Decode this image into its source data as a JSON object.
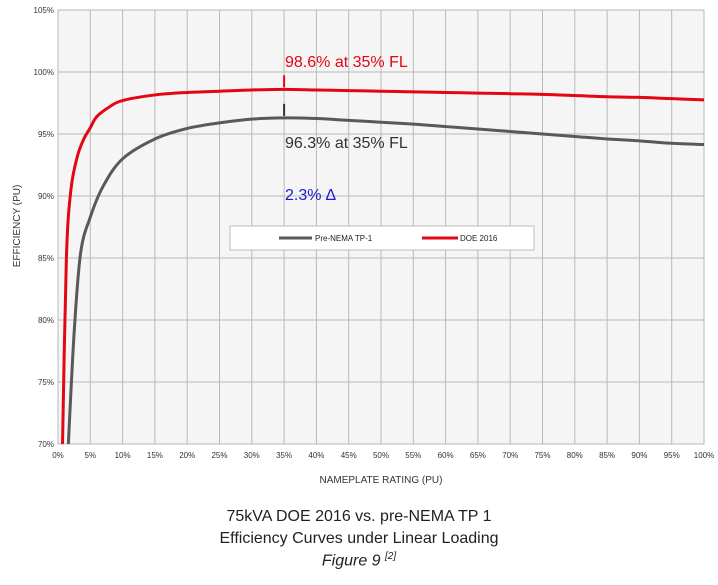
{
  "chart_data": {
    "type": "line",
    "xlabel": "NAMEPLATE RATING (PU)",
    "ylabel": "EFFICIENCY (PU)",
    "xlim": [
      0,
      100
    ],
    "ylim": [
      70,
      105
    ],
    "x_ticks": [
      "0%",
      "5%",
      "10%",
      "15%",
      "20%",
      "25%",
      "30%",
      "35%",
      "40%",
      "45%",
      "50%",
      "55%",
      "60%",
      "65%",
      "70%",
      "75%",
      "80%",
      "85%",
      "90%",
      "95%",
      "100%"
    ],
    "y_ticks": [
      "70%",
      "75%",
      "80%",
      "85%",
      "90%",
      "95%",
      "100%",
      "105%"
    ],
    "grid": true,
    "legend_position": "center",
    "series": [
      {
        "name": "Pre-NEMA TP-1",
        "color": "#58595b",
        "x": [
          1.6,
          2.5,
          3.5,
          5,
          7,
          10,
          15,
          20,
          25,
          30,
          35,
          40,
          45,
          50,
          55,
          60,
          65,
          70,
          75,
          80,
          85,
          90,
          95,
          100
        ],
        "y": [
          70,
          79,
          85.4,
          88.3,
          90.8,
          93.0,
          94.6,
          95.45,
          95.9,
          96.2,
          96.3,
          96.25,
          96.1,
          95.95,
          95.8,
          95.6,
          95.4,
          95.2,
          95.0,
          94.8,
          94.6,
          94.45,
          94.25,
          94.15
        ]
      },
      {
        "name": "DOE 2016",
        "color": "#e30613",
        "x": [
          0.7,
          1.3,
          2,
          3,
          4,
          5,
          6,
          8,
          10,
          15,
          20,
          25,
          30,
          35,
          40,
          45,
          50,
          55,
          60,
          65,
          70,
          75,
          80,
          85,
          90,
          95,
          100
        ],
        "y": [
          70,
          85,
          90.5,
          93.2,
          94.6,
          95.5,
          96.4,
          97.2,
          97.7,
          98.15,
          98.35,
          98.45,
          98.55,
          98.6,
          98.55,
          98.5,
          98.45,
          98.4,
          98.35,
          98.3,
          98.25,
          98.2,
          98.1,
          98.0,
          97.95,
          97.85,
          97.75
        ]
      }
    ],
    "annotations": [
      {
        "text": "98.6% at 35% FL",
        "color": "#e30613",
        "x": 35,
        "y": 98.6
      },
      {
        "text": "96.3% at 35% FL",
        "color": "#333333",
        "x": 35,
        "y": 96.3
      },
      {
        "text": "2.3% ∆",
        "color": "#1a1ad4"
      }
    ]
  },
  "caption": {
    "line1": "75kVA DOE 2016 vs. pre-NEMA TP 1",
    "line2": "Efficiency Curves under Linear Loading",
    "figure": "Figure 9 ",
    "ref": "[2]"
  }
}
